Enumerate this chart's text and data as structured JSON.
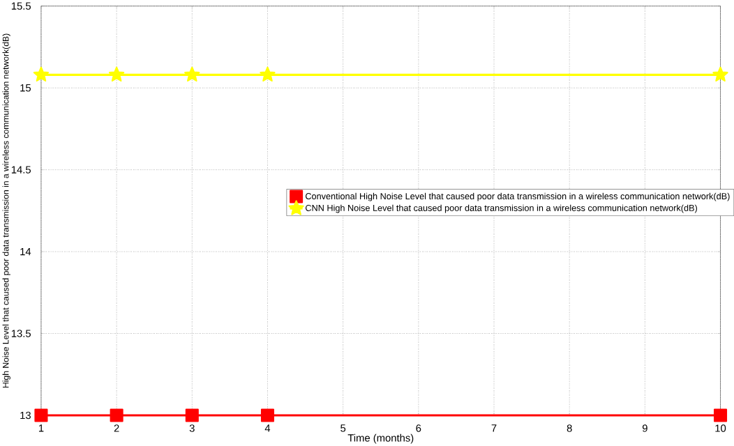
{
  "chart_data": {
    "type": "line",
    "xlabel": "Time (months)",
    "ylabel": "High Noise Level that caused poor data transmission in a wireless communication network(dB)",
    "x": [
      1,
      2,
      3,
      4,
      10
    ],
    "series": [
      {
        "name": "Conventional High Noise Level that caused poor data transmission in a wireless communication network(dB)",
        "color": "#ff0000",
        "marker": "square",
        "values": [
          13,
          13,
          13,
          13,
          13
        ]
      },
      {
        "name": "CNN High Noise Level that caused poor data transmission in a wireless communication network(dB)",
        "color": "#ffff00",
        "marker": "star",
        "values": [
          15.08,
          15.08,
          15.08,
          15.08,
          15.08
        ]
      }
    ],
    "xlim": [
      1,
      10
    ],
    "xticks": [
      1,
      2,
      3,
      4,
      5,
      6,
      7,
      8,
      9,
      10
    ],
    "ylim": [
      13,
      15.5
    ],
    "yticks": [
      13,
      13.5,
      14,
      14.5,
      15,
      15.5
    ],
    "grid": true,
    "legend": "right",
    "line_style": "solid"
  }
}
